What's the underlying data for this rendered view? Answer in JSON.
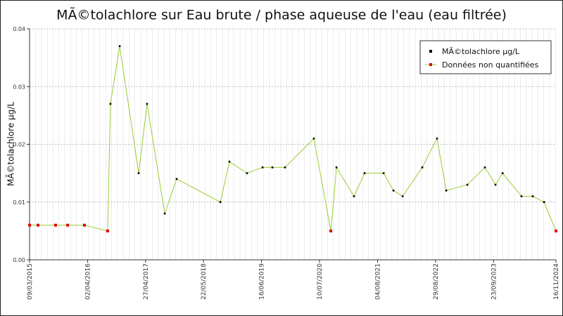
{
  "chart_data": {
    "type": "line",
    "title": "MÃ©tolachlore sur Eau brute / phase aqueuse de l'eau (eau filtrée)",
    "y_label": "MÃ©tolachlore µg/L",
    "xlim": [
      "2015-03-09",
      "2024-11-16"
    ],
    "xticks": [
      {
        "value": "2015-03-09",
        "label": "09/03/2015"
      },
      {
        "value": "2016-04-02",
        "label": "02/04/2016"
      },
      {
        "value": "2017-04-27",
        "label": "27/04/2017"
      },
      {
        "value": "2018-05-22",
        "label": "22/05/2018"
      },
      {
        "value": "2019-06-16",
        "label": "16/06/2019"
      },
      {
        "value": "2020-07-10",
        "label": "10/07/2020"
      },
      {
        "value": "2021-08-04",
        "label": "04/08/2021"
      },
      {
        "value": "2022-08-29",
        "label": "29/08/2022"
      },
      {
        "value": "2023-09-23",
        "label": "23/09/2023"
      },
      {
        "value": "2024-11-16",
        "label": "16/11/2024"
      }
    ],
    "ylim": [
      0,
      0.04
    ],
    "yticks": [
      {
        "value": 0,
        "label": "0.00"
      },
      0.01,
      0.02,
      0.03,
      0.04
    ],
    "grid": true,
    "legend": "upper right",
    "line_color": "#9acd32",
    "series": [
      {
        "name": "MÃ©tolachlore µg/L",
        "color": "#000000",
        "x": [
          "2015-03-09",
          "2015-05-05",
          "2015-08-31",
          "2015-11-20",
          "2016-03-12",
          "2016-08-15",
          "2016-09-03",
          "2016-11-04",
          "2017-03-12",
          "2017-05-07",
          "2017-09-03",
          "2017-11-22",
          "2018-09-12",
          "2018-11-12",
          "2019-03-10",
          "2019-06-23",
          "2019-08-28",
          "2019-11-21",
          "2020-06-02",
          "2020-09-24",
          "2020-11-01",
          "2021-02-27",
          "2021-05-09",
          "2021-09-14",
          "2021-11-19",
          "2022-01-20",
          "2022-06-01",
          "2022-09-08",
          "2022-11-09",
          "2023-03-31",
          "2023-07-27",
          "2023-10-06",
          "2023-11-23",
          "2024-03-29",
          "2024-06-13",
          "2024-08-28",
          "2024-11-16"
        ],
        "values": [
          0.006,
          0.006,
          0.006,
          0.006,
          0.006,
          0.005,
          0.027,
          0.037,
          0.015,
          0.027,
          0.008,
          0.014,
          0.01,
          0.017,
          0.015,
          0.016,
          0.016,
          0.016,
          0.021,
          0.005,
          0.016,
          0.011,
          0.015,
          0.015,
          0.012,
          0.011,
          0.016,
          0.021,
          0.012,
          0.013,
          0.016,
          0.013,
          0.015,
          0.011,
          0.011,
          0.01,
          0.005
        ]
      },
      {
        "name": "Données non quantifiées",
        "color": "#e00000",
        "x": [
          "2015-03-09",
          "2015-05-05",
          "2015-08-31",
          "2015-11-20",
          "2016-03-12",
          "2016-08-15",
          "2020-09-24",
          "2024-11-16"
        ],
        "values": [
          0.006,
          0.006,
          0.006,
          0.006,
          0.006,
          0.005,
          0.005,
          0.005
        ]
      }
    ]
  }
}
